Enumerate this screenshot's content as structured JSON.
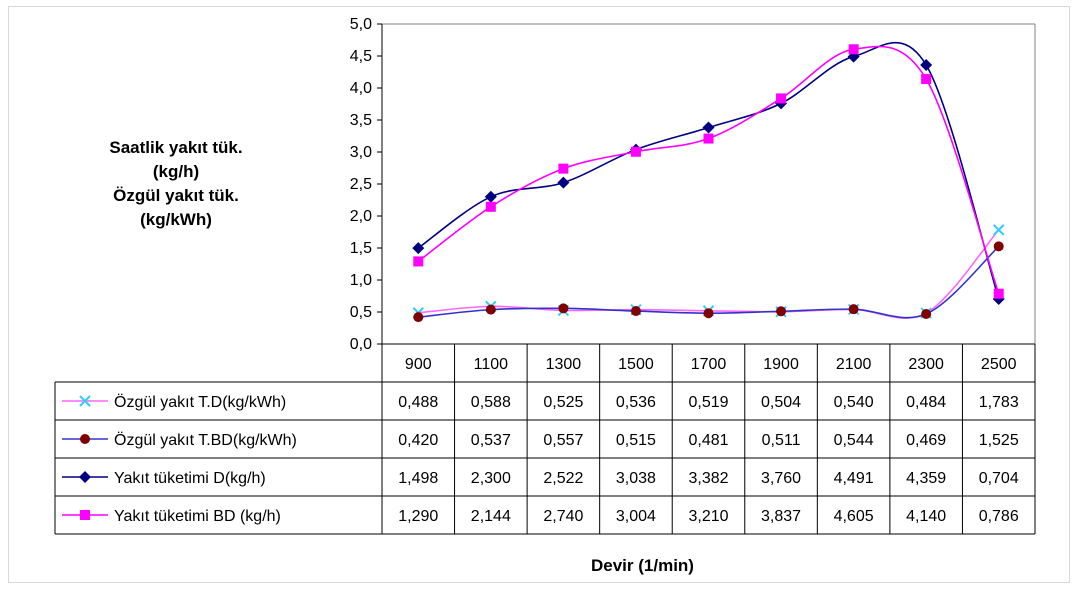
{
  "y_axis_label": {
    "lines": [
      "Saatlik yakıt tük.",
      "(kg/h)",
      "Özgül yakıt tük.",
      "(kg/kWh)"
    ]
  },
  "x_axis_label": "Devir (1/min)",
  "chart_data": {
    "type": "line",
    "xlabel": "Devir (1/min)",
    "ylabel": "Saatlik yakıt tük. (kg/h) Özgül yakıt tük. (kg/kWh)",
    "categories": [
      "900",
      "1100",
      "1300",
      "1500",
      "1700",
      "1900",
      "2100",
      "2300",
      "2500"
    ],
    "ylim": [
      0,
      5
    ],
    "y_ticks": [
      "0,0",
      "0,5",
      "1,0",
      "1,5",
      "2,0",
      "2,5",
      "3,0",
      "3,5",
      "4,0",
      "4,5",
      "5,0"
    ],
    "grid": false,
    "legend": "data-table",
    "series": [
      {
        "name": "Özgül yakıt T.D(kg/kWh)",
        "values": [
          0.488,
          0.588,
          0.525,
          0.536,
          0.519,
          0.504,
          0.54,
          0.484,
          1.783
        ],
        "labels": [
          "0,488",
          "0,588",
          "0,525",
          "0,536",
          "0,519",
          "0,504",
          "0,540",
          "0,484",
          "1,783"
        ],
        "color": "#ff66ff",
        "marker": "x",
        "marker_color": "#33ccff"
      },
      {
        "name": "Özgül yakıt T.BD(kg/kWh)",
        "values": [
          0.42,
          0.537,
          0.557,
          0.515,
          0.481,
          0.511,
          0.544,
          0.469,
          1.525
        ],
        "labels": [
          "0,420",
          "0,537",
          "0,557",
          "0,515",
          "0,481",
          "0,511",
          "0,544",
          "0,469",
          "1,525"
        ],
        "color": "#3333cc",
        "marker": "circle",
        "marker_color": "#800000"
      },
      {
        "name": "Yakıt tüketimi D(kg/h)",
        "values": [
          1.498,
          2.3,
          2.522,
          3.038,
          3.382,
          3.76,
          4.491,
          4.359,
          0.704
        ],
        "labels": [
          "1,498",
          "2,300",
          "2,522",
          "3,038",
          "3,382",
          "3,760",
          "4,491",
          "4,359",
          "0,704"
        ],
        "color": "#000080",
        "marker": "diamond",
        "marker_color": "#000080"
      },
      {
        "name": "Yakıt tüketimi BD (kg/h)",
        "values": [
          1.29,
          2.144,
          2.74,
          3.004,
          3.21,
          3.837,
          4.605,
          4.14,
          0.786
        ],
        "labels": [
          "1,290",
          "2,144",
          "2,740",
          "3,004",
          "3,210",
          "3,837",
          "4,605",
          "4,140",
          "0,786"
        ],
        "color": "#ff00ff",
        "marker": "square",
        "marker_color": "#ff00ff"
      }
    ]
  }
}
